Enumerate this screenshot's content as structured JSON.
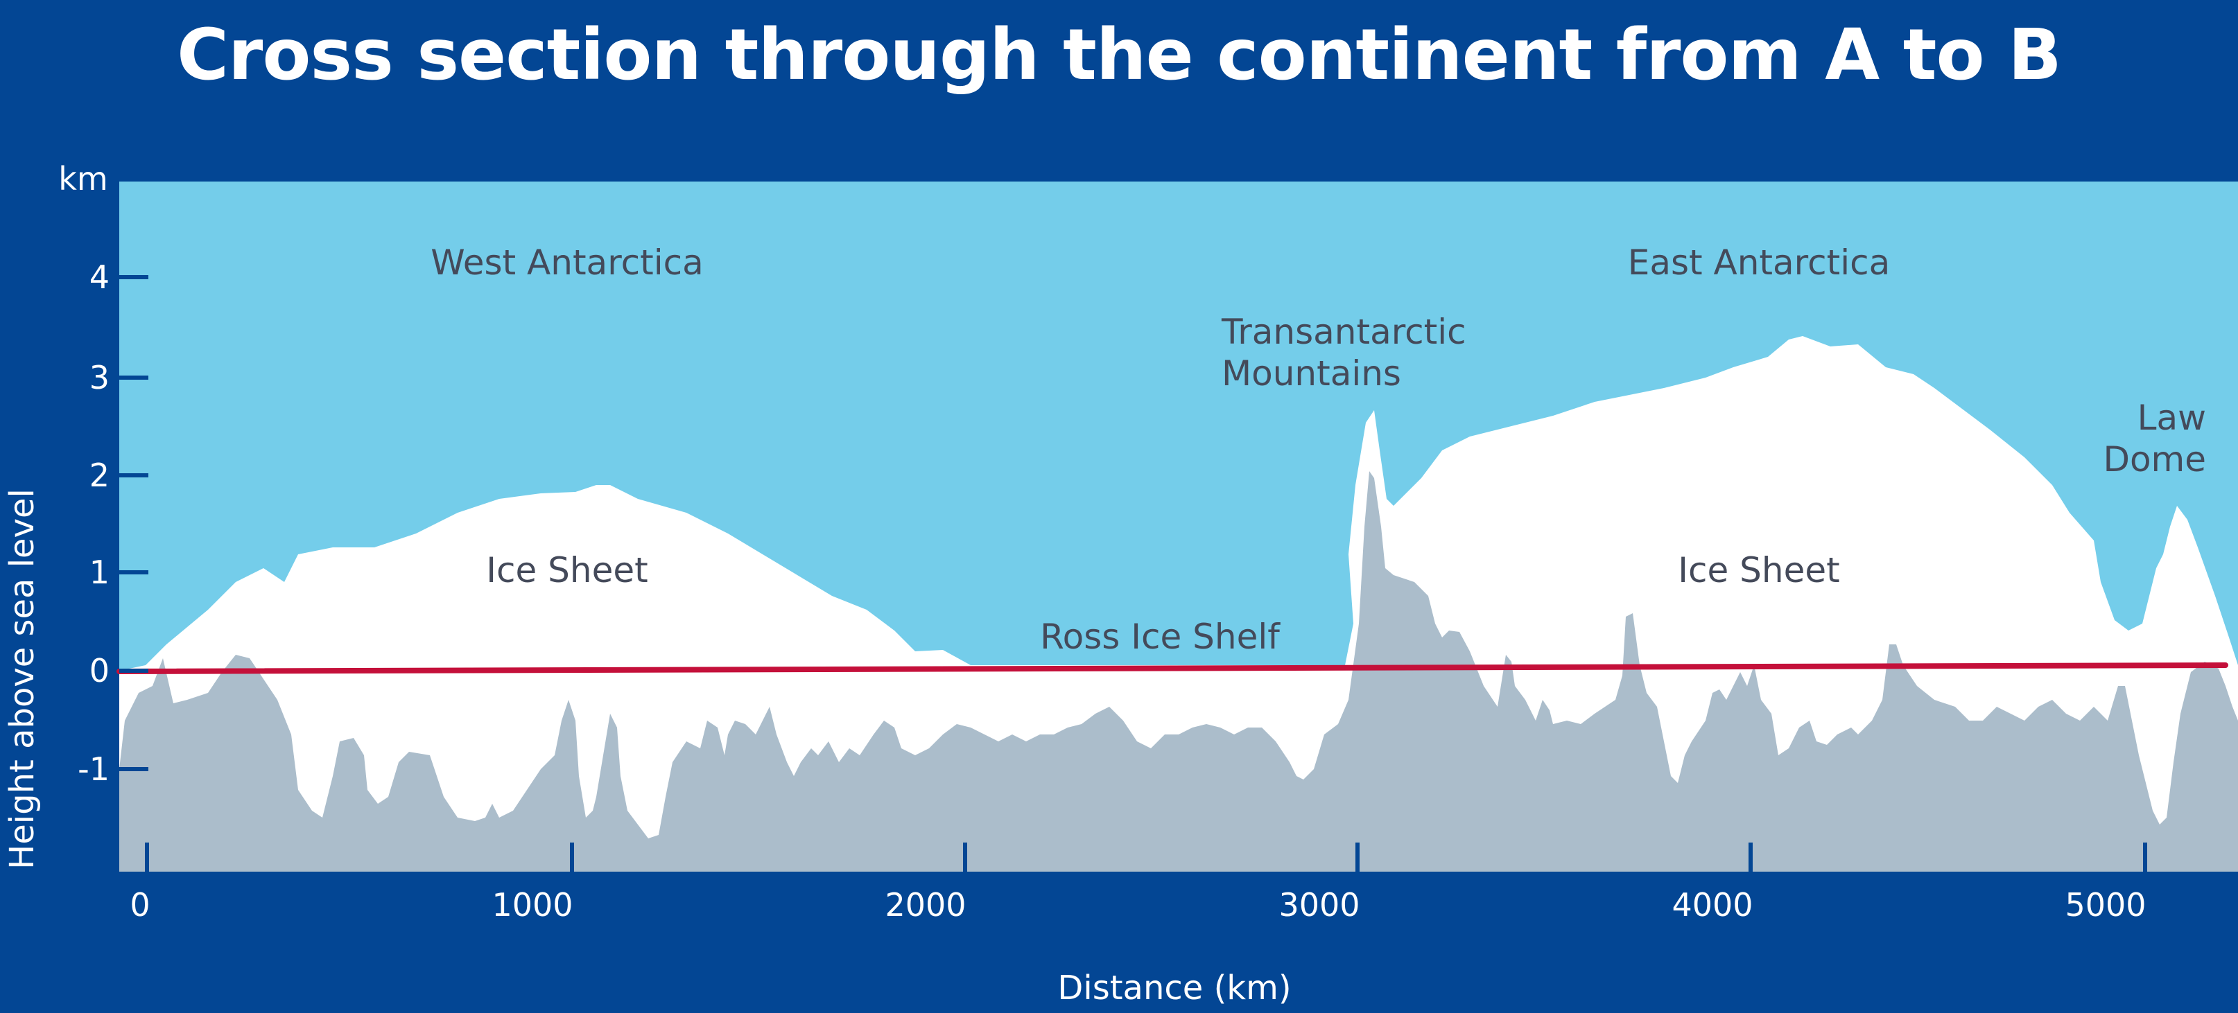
{
  "title": "Cross section through the continent from A to B",
  "colors": {
    "background": "#034694",
    "sky": "#74cdea",
    "ice": "#ffffff",
    "bedrock": "#abbdcb",
    "sea_level_line": "#c4103a",
    "label_text": "#444a5a"
  },
  "axes": {
    "x_label": "Distance (km)",
    "y_label": "Height above sea level",
    "y_unit": "km",
    "x_ticks": [
      "0",
      "1000",
      "2000",
      "3000",
      "4000",
      "5000"
    ],
    "y_ticks": [
      "4",
      "3",
      "2",
      "1",
      "0",
      "-1"
    ]
  },
  "labels": {
    "west_antarctica": "West Antarctica",
    "east_antarctica": "East Antarctica",
    "transantarctic_line1": "Transantarctic",
    "transantarctic_line2": "Mountains",
    "law_dome_line1": "Law",
    "law_dome_line2": "Dome",
    "ice_sheet_west": "Ice Sheet",
    "ice_sheet_east": "Ice Sheet",
    "ross_ice_shelf": "Ross Ice Shelf"
  }
}
